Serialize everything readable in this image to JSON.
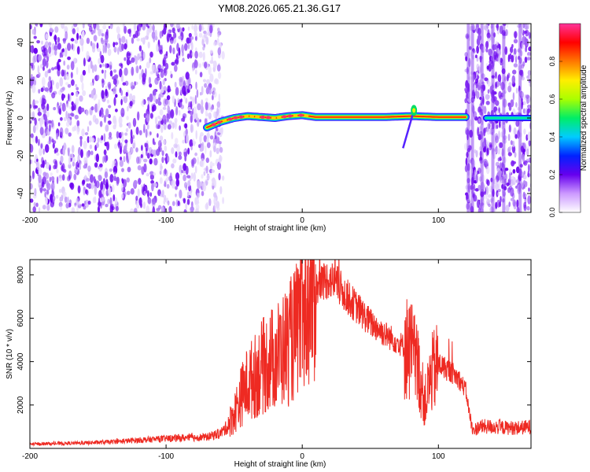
{
  "title": "YM08.2026.065.21.36.G17",
  "colors": {
    "snr_line": "#ee2a22",
    "axis": "#000000",
    "background": "#ffffff"
  },
  "chart_data": [
    {
      "type": "heatmap",
      "title": "YM08.2026.065.21.36.G17",
      "xlabel": "Height of straight line (km)",
      "ylabel": "Frequency (Hz)",
      "xlim": [
        -200,
        168
      ],
      "ylim": [
        -50,
        50
      ],
      "x_ticks": [
        "-200",
        "-100",
        "0",
        "100"
      ],
      "y_ticks": [
        "-40",
        "-20",
        "0",
        "20",
        "40"
      ],
      "colorbar": {
        "label": "Normalized spectral amplitude",
        "range": [
          0,
          1
        ],
        "ticks": [
          "0.0",
          "0.2",
          "0.4",
          "0.6",
          "0.8"
        ],
        "colors": [
          "#ffffff",
          "#cc99ff",
          "#6600ee",
          "#0022ff",
          "#00ccff",
          "#00ee66",
          "#aaff00",
          "#ffee00",
          "#ff7700",
          "#ff0000",
          "#ff3399"
        ]
      },
      "noise_regions": [
        {
          "x": [
            -200,
            -58
          ],
          "density": "high"
        },
        {
          "x": [
            120,
            168
          ],
          "density": "medium"
        }
      ],
      "signal_track": [
        {
          "x": -70,
          "y": -5
        },
        {
          "x": -60,
          "y": -2
        },
        {
          "x": -50,
          "y": 0
        },
        {
          "x": -40,
          "y": 1
        },
        {
          "x": -30,
          "y": 0.5
        },
        {
          "x": -20,
          "y": 0
        },
        {
          "x": -10,
          "y": 1
        },
        {
          "x": 0,
          "y": 1.5
        },
        {
          "x": 10,
          "y": 0.5
        },
        {
          "x": 30,
          "y": 0.5
        },
        {
          "x": 60,
          "y": 0.5
        },
        {
          "x": 80,
          "y": 1
        },
        {
          "x": 100,
          "y": 0.5
        },
        {
          "x": 120,
          "y": 0.5
        }
      ],
      "signal_track_2": {
        "x": [
          135,
          168
        ],
        "y": 0
      },
      "branch": [
        {
          "x": 74,
          "y": -16
        },
        {
          "x": 82,
          "y": 4
        }
      ]
    },
    {
      "type": "line",
      "xlabel": "Height of straight line (km)",
      "ylabel": "SNR (10 * v/v)",
      "xlim": [
        -200,
        168
      ],
      "ylim": [
        0,
        8700
      ],
      "x_ticks": [
        "-200",
        "-100",
        "0",
        "100"
      ],
      "y_ticks": [
        "2000",
        "4000",
        "6000",
        "8000"
      ],
      "series": [
        {
          "x": [
            -200,
            -180,
            -160,
            -140,
            -120,
            -100,
            -90,
            -80,
            -70,
            -60,
            -55,
            -50,
            -45,
            -40,
            -35,
            -30,
            -25,
            -20,
            -15,
            -10,
            -5,
            0,
            5,
            10,
            15,
            20,
            25,
            30,
            40,
            50,
            60,
            70,
            80,
            85,
            90,
            95,
            100,
            110,
            115,
            120,
            125,
            130,
            140,
            150,
            160,
            168
          ],
          "values": [
            200,
            220,
            250,
            300,
            380,
            450,
            480,
            500,
            520,
            700,
            1000,
            1600,
            2400,
            3000,
            3300,
            3700,
            4000,
            4200,
            4500,
            4800,
            5300,
            6100,
            6800,
            7300,
            7700,
            7800,
            7600,
            7200,
            6500,
            5800,
            5300,
            4900,
            4500,
            3700,
            2100,
            3400,
            3900,
            3500,
            3200,
            2700,
            800,
            1000,
            1000,
            950,
            950,
            1000
          ]
        }
      ],
      "grid": false
    }
  ]
}
